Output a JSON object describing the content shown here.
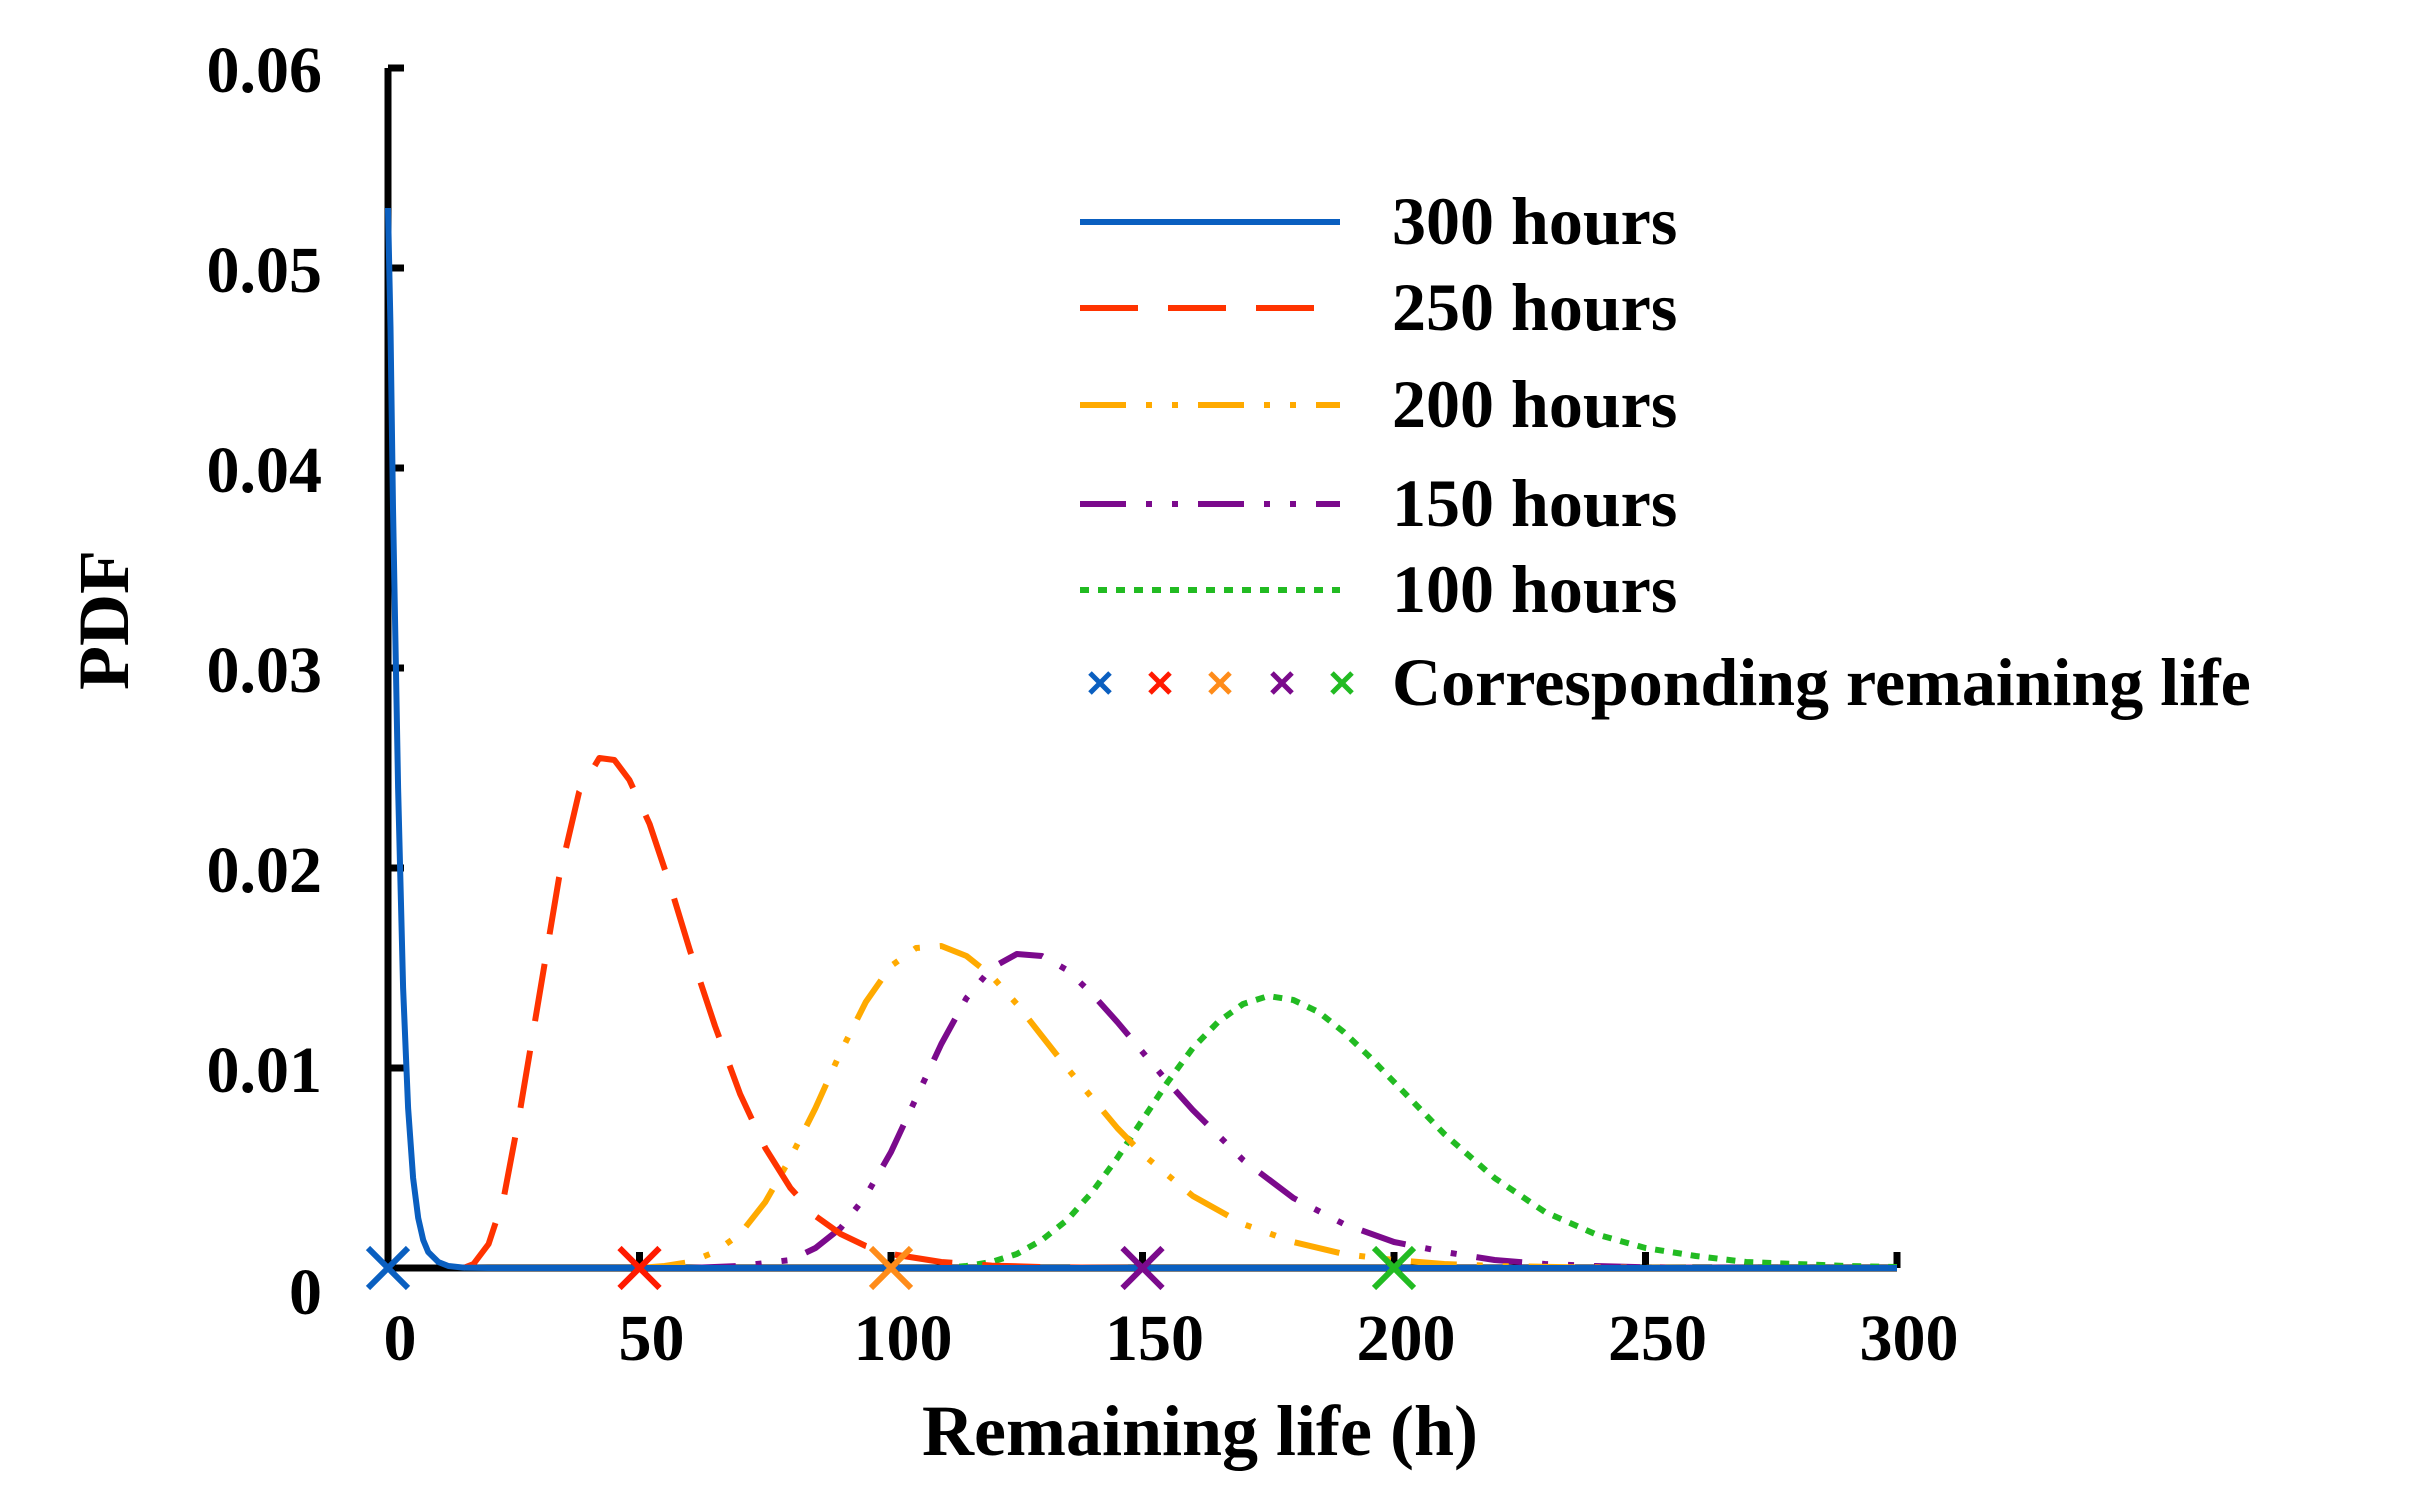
{
  "chart_data": {
    "type": "line",
    "xlabel": "Remaining life (h)",
    "ylabel": "PDF",
    "xlim": [
      0,
      300
    ],
    "ylim": [
      0,
      0.06
    ],
    "xticks": [
      "0",
      "50",
      "100",
      "150",
      "200",
      "250",
      "300"
    ],
    "yticks": [
      "0",
      "0.01",
      "0.02",
      "0.03",
      "0.04",
      "0.05",
      "0.06"
    ],
    "xtick_values": [
      0,
      50,
      100,
      150,
      200,
      250,
      300
    ],
    "ytick_values": [
      0,
      0.01,
      0.02,
      0.03,
      0.04,
      0.05,
      0.06
    ],
    "grid": false,
    "legend_position": "top-right",
    "series": [
      {
        "name": "300 hours",
        "color": "#0a5fc0",
        "style": "solid",
        "x": [
          0,
          0.5,
          1,
          2,
          3,
          4,
          5,
          6,
          7,
          8,
          10,
          12,
          15,
          20,
          300
        ],
        "y": [
          0.053,
          0.047,
          0.038,
          0.024,
          0.014,
          0.008,
          0.0045,
          0.0025,
          0.0014,
          0.0008,
          0.0003,
          0.0001,
          2e-05,
          0,
          0
        ]
      },
      {
        "name": "250 hours",
        "color": "#ff3300",
        "style": "dashed",
        "x": [
          15,
          17,
          20,
          23,
          26,
          30,
          34,
          38,
          42,
          45,
          48,
          52,
          56,
          60,
          65,
          70,
          75,
          80,
          85,
          90,
          95,
          100,
          110,
          120,
          130,
          140,
          150,
          170,
          200,
          250,
          300
        ],
        "y": [
          0,
          0.0002,
          0.0012,
          0.0035,
          0.0075,
          0.0135,
          0.0195,
          0.0238,
          0.0255,
          0.0254,
          0.0244,
          0.0222,
          0.0192,
          0.0159,
          0.0121,
          0.0087,
          0.006,
          0.004,
          0.0026,
          0.0017,
          0.0011,
          0.0007,
          0.0003,
          0.00012,
          5e-05,
          2e-05,
          0,
          0,
          0,
          0,
          0
        ]
      },
      {
        "name": "200 hours",
        "color": "#ffaa00",
        "style": "dashdotdot",
        "x": [
          50,
          55,
          60,
          65,
          70,
          75,
          80,
          85,
          90,
          95,
          100,
          105,
          110,
          115,
          120,
          125,
          130,
          135,
          140,
          145,
          150,
          160,
          170,
          180,
          190,
          200,
          210,
          220,
          235,
          250,
          270,
          300
        ],
        "y": [
          0,
          0.0001,
          0.0003,
          0.0008,
          0.0017,
          0.0033,
          0.0055,
          0.008,
          0.0108,
          0.0133,
          0.0151,
          0.016,
          0.0161,
          0.0156,
          0.0146,
          0.0132,
          0.0116,
          0.01,
          0.0085,
          0.007,
          0.0057,
          0.0036,
          0.0022,
          0.0013,
          0.0007,
          0.0004,
          0.0002,
          0.0001,
          4e-05,
          1e-05,
          0,
          0
        ]
      },
      {
        "name": "150 hours",
        "color": "#7b0a8c",
        "style": "dashdotdot",
        "x": [
          60,
          70,
          80,
          85,
          90,
          95,
          100,
          105,
          110,
          115,
          120,
          125,
          130,
          135,
          140,
          145,
          150,
          155,
          160,
          170,
          180,
          190,
          200,
          210,
          220,
          230,
          240,
          250,
          270,
          300
        ],
        "y": [
          0,
          0.0001,
          0.0004,
          0.001,
          0.002,
          0.0036,
          0.0058,
          0.0085,
          0.0112,
          0.0135,
          0.015,
          0.0157,
          0.0156,
          0.0149,
          0.0137,
          0.0123,
          0.0108,
          0.0093,
          0.0079,
          0.0054,
          0.0035,
          0.0022,
          0.0013,
          0.0008,
          0.0004,
          0.0002,
          0.0001,
          4e-05,
          1e-05,
          0
        ]
      },
      {
        "name": "100 hours",
        "color": "#22bb22",
        "style": "dotted",
        "x": [
          110,
          115,
          120,
          125,
          130,
          135,
          140,
          145,
          150,
          155,
          160,
          165,
          170,
          175,
          180,
          185,
          190,
          195,
          200,
          210,
          220,
          230,
          240,
          250,
          260,
          270,
          280,
          290,
          300
        ],
        "y": [
          0,
          0.0001,
          0.0003,
          0.0007,
          0.0014,
          0.0024,
          0.0038,
          0.0055,
          0.0074,
          0.0093,
          0.011,
          0.0123,
          0.0132,
          0.0136,
          0.0134,
          0.0128,
          0.0118,
          0.0106,
          0.0093,
          0.0067,
          0.0045,
          0.0028,
          0.0017,
          0.001,
          0.0006,
          0.0003,
          0.0002,
          0.0001,
          5e-05
        ]
      }
    ],
    "markers": {
      "name": "Corresponding remaining life",
      "points": [
        {
          "x": 0,
          "y": 0,
          "color": "#0a5fc0"
        },
        {
          "x": 50,
          "y": 0,
          "color": "#ff1a00"
        },
        {
          "x": 100,
          "y": 0,
          "color": "#ff8c1a"
        },
        {
          "x": 150,
          "y": 0,
          "color": "#7b0a8c"
        },
        {
          "x": 200,
          "y": 0,
          "color": "#22bb22"
        }
      ]
    }
  }
}
